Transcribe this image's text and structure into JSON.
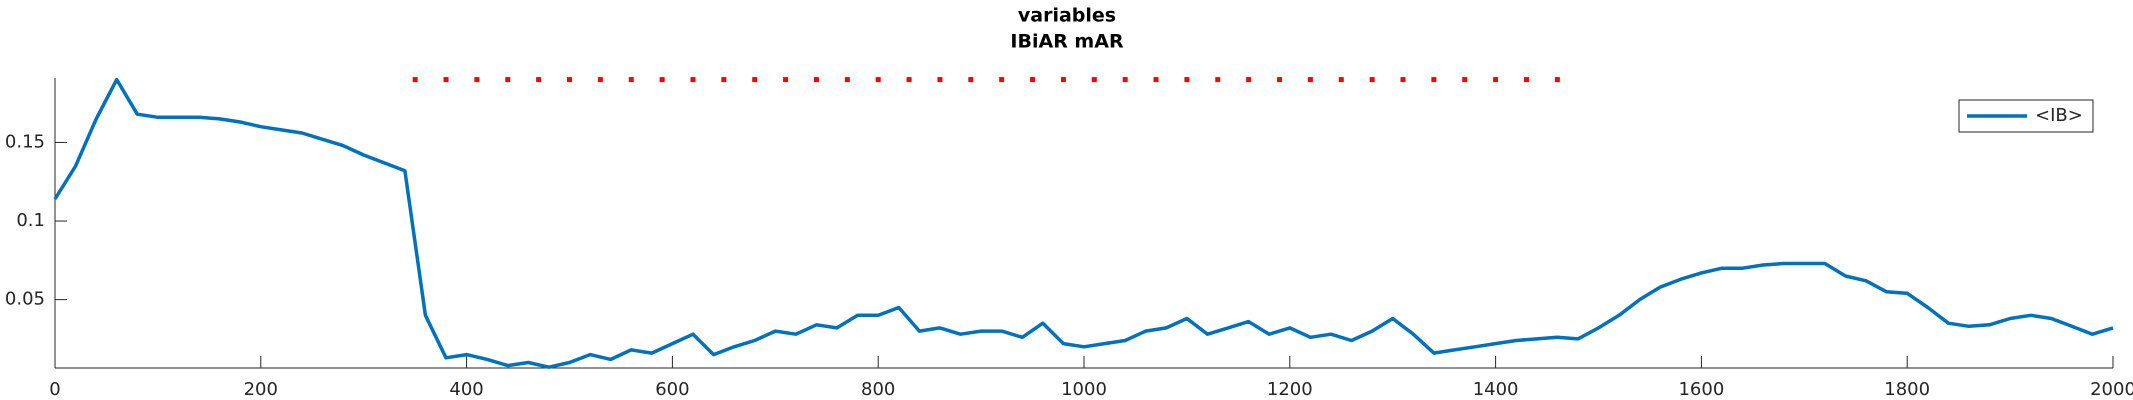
{
  "chart_data": {
    "type": "line",
    "title": [
      "variables",
      "IBiAR mAR"
    ],
    "x": [
      0,
      20,
      40,
      60,
      80,
      100,
      120,
      140,
      160,
      180,
      200,
      220,
      240,
      260,
      280,
      300,
      320,
      340,
      360,
      380,
      400,
      420,
      440,
      460,
      480,
      500,
      520,
      540,
      560,
      580,
      600,
      620,
      640,
      660,
      680,
      700,
      720,
      740,
      760,
      780,
      800,
      820,
      840,
      860,
      880,
      900,
      920,
      940,
      960,
      980,
      1000,
      1020,
      1040,
      1060,
      1080,
      1100,
      1120,
      1140,
      1160,
      1180,
      1200,
      1220,
      1240,
      1260,
      1280,
      1300,
      1320,
      1340,
      1360,
      1380,
      1400,
      1420,
      1440,
      1460,
      1480,
      1500,
      1520,
      1540,
      1560,
      1580,
      1600,
      1620,
      1640,
      1660,
      1680,
      1700,
      1720,
      1740,
      1760,
      1780,
      1800,
      1820,
      1840,
      1860,
      1880,
      1900,
      1920,
      1940,
      1960,
      1980,
      2000
    ],
    "series": [
      {
        "name": "<IB>",
        "color": "#0072bd",
        "style": "solid",
        "values": [
          0.114,
          0.135,
          0.165,
          0.19,
          0.168,
          0.166,
          0.166,
          0.166,
          0.165,
          0.163,
          0.16,
          0.158,
          0.156,
          0.152,
          0.148,
          0.142,
          0.137,
          0.132,
          0.04,
          0.013,
          0.015,
          0.012,
          0.008,
          0.01,
          0.007,
          0.01,
          0.015,
          0.012,
          0.018,
          0.016,
          0.022,
          0.028,
          0.015,
          0.02,
          0.024,
          0.03,
          0.028,
          0.034,
          0.032,
          0.04,
          0.04,
          0.045,
          0.03,
          0.032,
          0.028,
          0.03,
          0.03,
          0.026,
          0.035,
          0.022,
          0.02,
          0.022,
          0.024,
          0.03,
          0.032,
          0.038,
          0.028,
          0.032,
          0.036,
          0.028,
          0.032,
          0.026,
          0.028,
          0.024,
          0.03,
          0.038,
          0.028,
          0.016,
          0.018,
          0.02,
          0.022,
          0.024,
          0.025,
          0.026,
          0.025,
          0.032,
          0.04,
          0.05,
          0.058,
          0.063,
          0.067,
          0.07,
          0.07,
          0.072,
          0.073,
          0.073,
          0.073,
          0.065,
          0.062,
          0.055,
          0.054,
          0.045,
          0.035,
          0.033,
          0.034,
          0.038,
          0.04,
          0.038,
          0.033,
          0.028,
          0.032
        ]
      },
      {
        "color": "#ff0000",
        "style": "dotted",
        "x": [
          350,
          380,
          410,
          440,
          470,
          500,
          530,
          560,
          590,
          620,
          650,
          680,
          710,
          740,
          770,
          800,
          830,
          860,
          890,
          920,
          950,
          980,
          1010,
          1040,
          1070,
          1100,
          1130,
          1160,
          1190,
          1220,
          1250,
          1280,
          1310,
          1340,
          1370,
          1400,
          1430,
          1460
        ],
        "values": [
          0.19,
          0.19,
          0.19,
          0.19,
          0.19,
          0.19,
          0.19,
          0.19,
          0.19,
          0.19,
          0.19,
          0.19,
          0.19,
          0.19,
          0.19,
          0.19,
          0.19,
          0.19,
          0.19,
          0.19,
          0.19,
          0.19,
          0.19,
          0.19,
          0.19,
          0.19,
          0.19,
          0.19,
          0.19,
          0.19,
          0.19,
          0.19,
          0.19,
          0.19,
          0.19,
          0.19,
          0.19,
          0.19
        ]
      }
    ],
    "xlim": [
      0,
      2000
    ],
    "xticks": [
      0,
      200,
      400,
      600,
      800,
      1000,
      1200,
      1400,
      1600,
      1800,
      2000
    ],
    "ylim": [
      0.0065,
      0.191
    ],
    "yticks": [
      0.05,
      0.1,
      0.15
    ],
    "legend": "northeast"
  }
}
